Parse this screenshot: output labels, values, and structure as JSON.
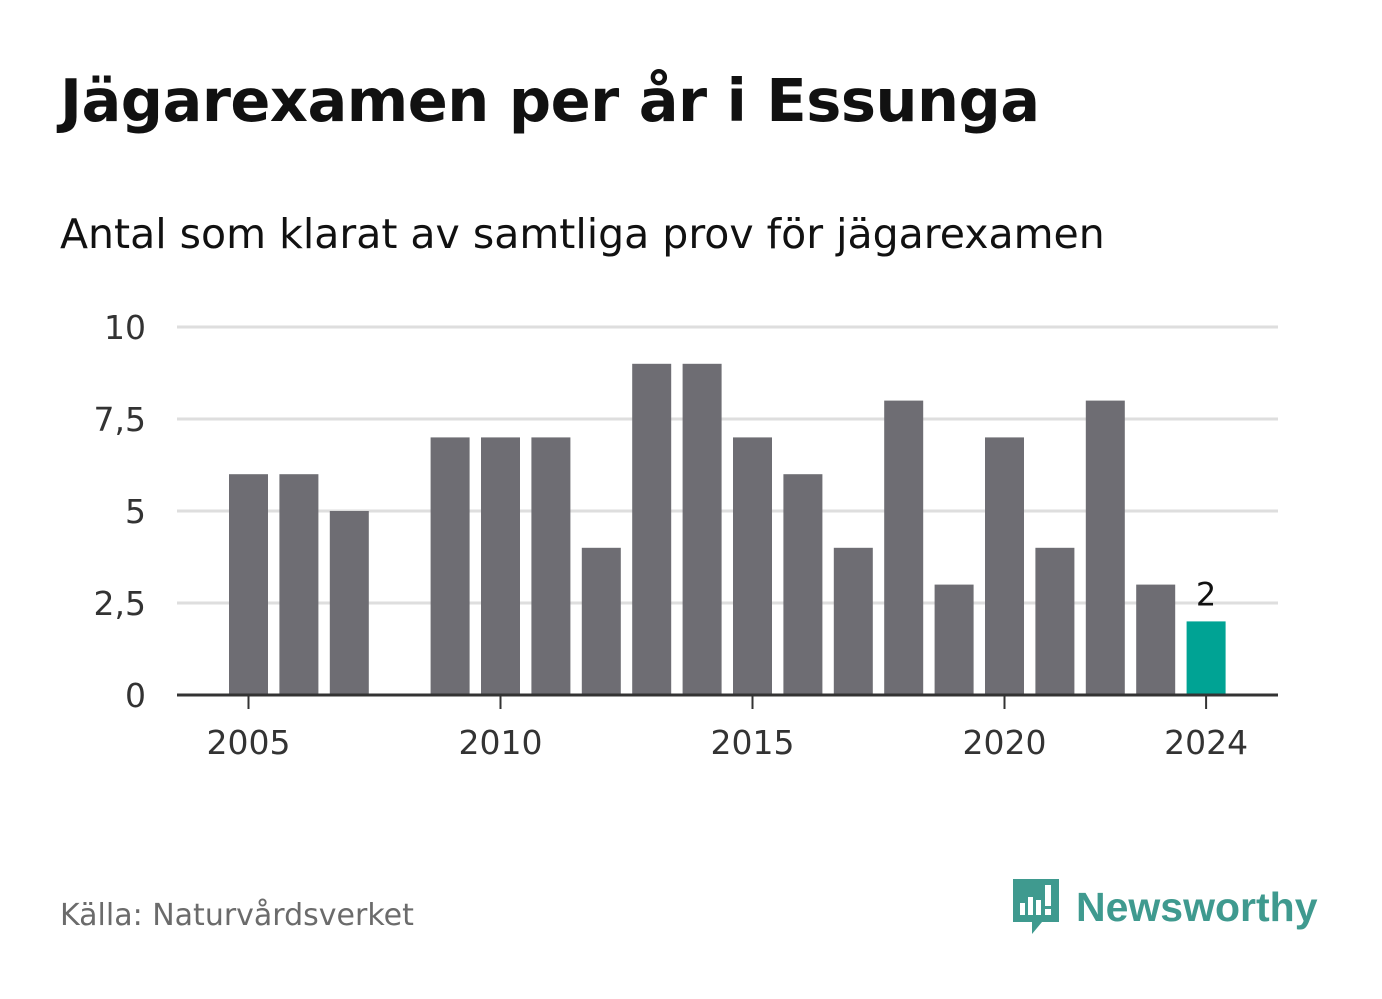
{
  "header": {
    "title": "Jägarexamen per år i Essunga",
    "subtitle": "Antal som klarat av samtliga prov för jägarexamen"
  },
  "footer": {
    "source": "Källa: Naturvårdsverket",
    "brand": "Newsworthy"
  },
  "colors": {
    "bar": "#6e6d73",
    "highlight": "#00a394",
    "grid": "#dedede",
    "axis": "#333333",
    "brand": "#3f9a8f"
  },
  "chart_data": {
    "type": "bar",
    "x": [
      2005,
      2006,
      2007,
      2008,
      2009,
      2010,
      2011,
      2012,
      2013,
      2014,
      2015,
      2016,
      2017,
      2018,
      2019,
      2020,
      2021,
      2022,
      2023,
      2024
    ],
    "values": [
      6,
      6,
      5,
      0,
      7,
      7,
      7,
      4,
      9,
      9,
      7,
      6,
      4,
      8,
      3,
      7,
      4,
      8,
      3,
      2
    ],
    "highlight": 2024,
    "highlight_label": "2",
    "ylim": [
      0,
      10
    ],
    "yticks": [
      0,
      2.5,
      5,
      7.5,
      10
    ],
    "ytick_labels": [
      "0",
      "2,5",
      "5",
      "7,5",
      "10"
    ],
    "xticks": [
      2005,
      2010,
      2015,
      2020,
      2024
    ],
    "xtick_labels": [
      "2005",
      "2010",
      "2015",
      "2020",
      "2024"
    ],
    "grid": true
  }
}
